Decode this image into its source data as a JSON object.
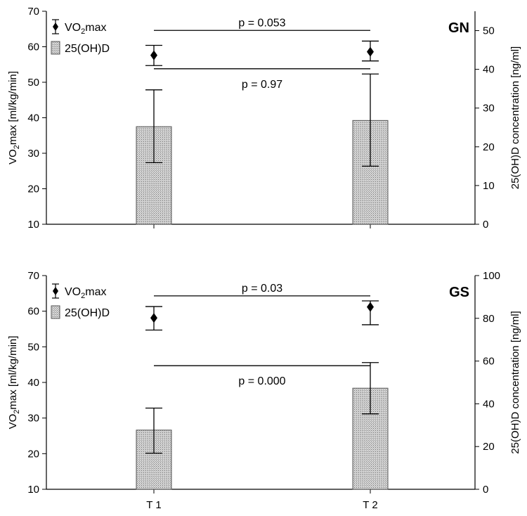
{
  "chart_data": [
    {
      "type": "bar",
      "panel_label": "GN",
      "categories": [
        "T 1",
        "T 2"
      ],
      "xticklabels_visible": false,
      "left_axis": {
        "label_parts": [
          "VO",
          "2",
          "max [ml/kg/min]"
        ],
        "ylim": [
          10,
          70
        ],
        "ticks": [
          10,
          20,
          30,
          40,
          50,
          60,
          70
        ]
      },
      "right_axis": {
        "label": "25(OH)D concentration [ng/ml]",
        "ylim": [
          0,
          55
        ],
        "ticks": [
          0,
          10,
          20,
          30,
          40,
          50
        ]
      },
      "series": [
        {
          "name": "25(OH)D",
          "kind": "bar",
          "axis": "right",
          "values": [
            25.2,
            26.8
          ],
          "err_low": [
            15.9,
            15.0
          ],
          "err_high": [
            34.7,
            38.8
          ]
        },
        {
          "name": "VO2max",
          "kind": "point",
          "axis": "left",
          "values": [
            57.6,
            58.6
          ],
          "err_low": [
            54.7,
            56.0
          ],
          "err_high": [
            60.4,
            61.6
          ]
        }
      ],
      "annotations": [
        {
          "text": "p = 0.053",
          "axis": "left",
          "bracket_y": 64.6,
          "text_pos": "above"
        },
        {
          "text": "p = 0.97",
          "axis": "left",
          "bracket_y": 53.8,
          "text_pos": "below"
        }
      ],
      "legend": {
        "position": "top-left",
        "entries": [
          {
            "label_parts": [
              "VO",
              "2",
              "max"
            ],
            "marker": "diamond-errorbar"
          },
          {
            "label": "25(OH)D",
            "marker": "hatched-box"
          }
        ]
      }
    },
    {
      "type": "bar",
      "panel_label": "GS",
      "categories": [
        "T 1",
        "T 2"
      ],
      "xticklabels_visible": true,
      "left_axis": {
        "label_parts": [
          "VO",
          "2",
          "max [ml/kg/min]"
        ],
        "ylim": [
          10,
          70
        ],
        "ticks": [
          10,
          20,
          30,
          40,
          50,
          60,
          70
        ]
      },
      "right_axis": {
        "label": "25(OH)D concentration [ng/ml]",
        "ylim": [
          0,
          100
        ],
        "ticks": [
          0,
          20,
          40,
          60,
          80,
          100
        ]
      },
      "series": [
        {
          "name": "25(OH)D",
          "kind": "bar",
          "axis": "right",
          "values": [
            27.7,
            47.3
          ],
          "err_low": [
            16.9,
            35.3
          ],
          "err_high": [
            38.0,
            59.3
          ]
        },
        {
          "name": "VO2max",
          "kind": "point",
          "axis": "left",
          "values": [
            58.1,
            61.2
          ],
          "err_low": [
            54.7,
            56.2
          ],
          "err_high": [
            61.3,
            62.9
          ]
        }
      ],
      "annotations": [
        {
          "text": "p = 0.03",
          "axis": "left",
          "bracket_y": 64.3,
          "text_pos": "above"
        },
        {
          "text": "p = 0.000",
          "axis": "left",
          "bracket_y": 44.7,
          "text_pos": "below"
        }
      ],
      "legend": {
        "position": "top-left",
        "entries": [
          {
            "label_parts": [
              "VO",
              "2",
              "max"
            ],
            "marker": "diamond-errorbar"
          },
          {
            "label": "25(OH)D",
            "marker": "hatched-box"
          }
        ]
      }
    }
  ]
}
